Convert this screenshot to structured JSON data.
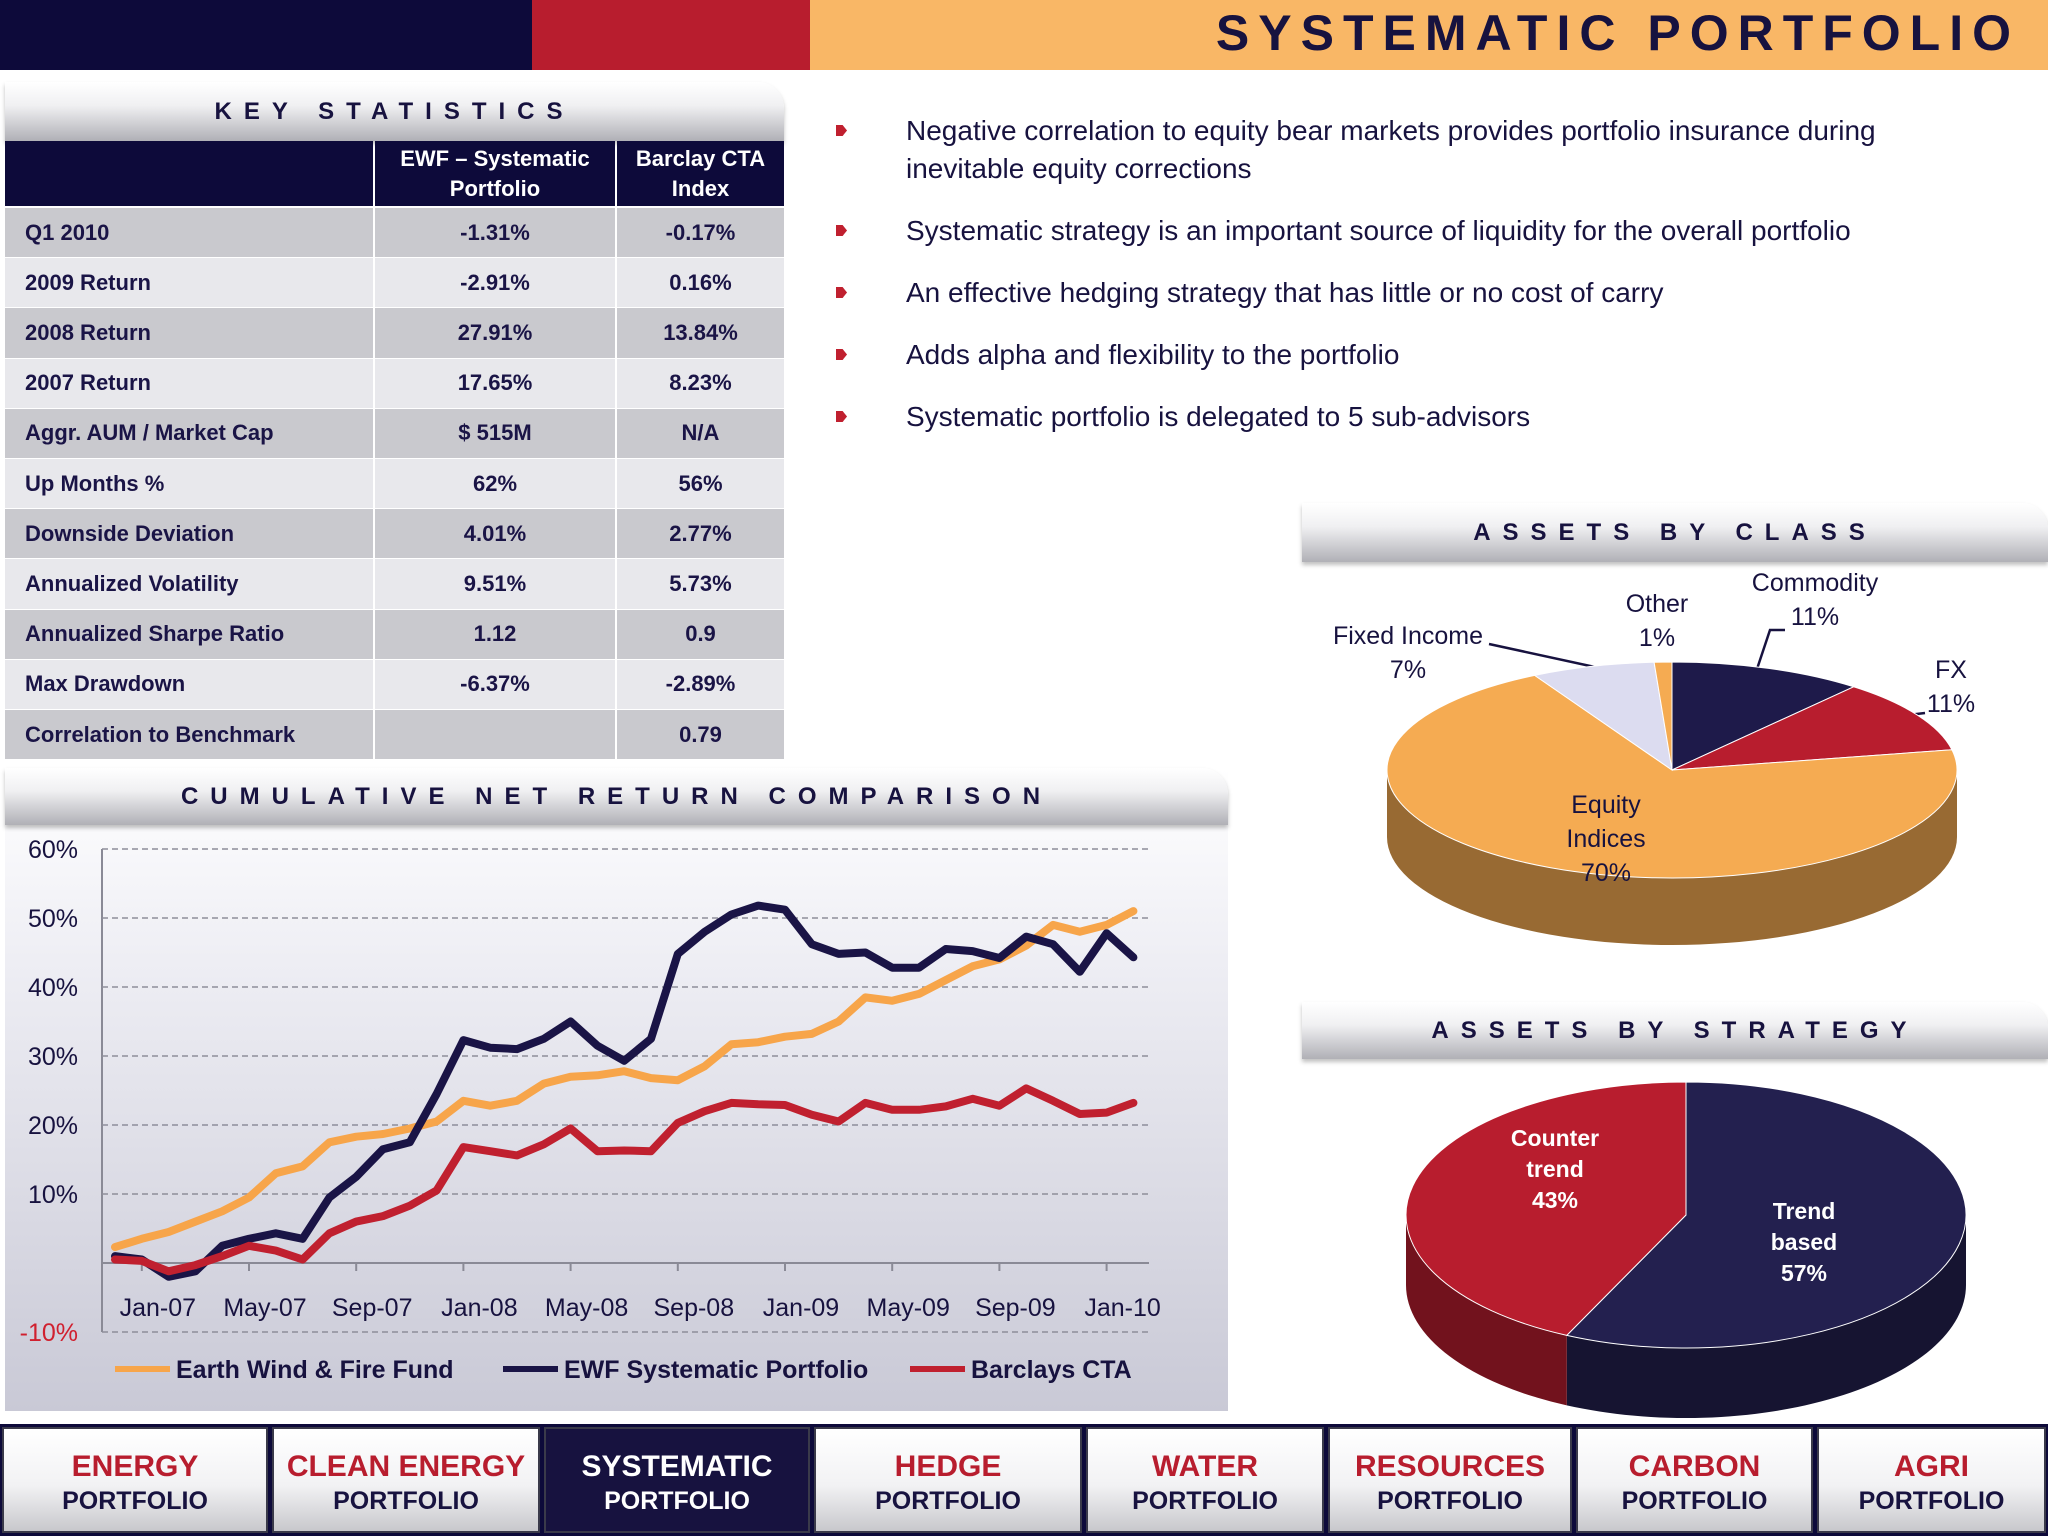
{
  "header": {
    "title": "SYSTEMATIC PORTFOLIO"
  },
  "key_statistics": {
    "title": "KEY STATISTICS",
    "columns": [
      "EWF – Systematic Portfolio",
      "Barclay CTA Index"
    ],
    "rows": [
      {
        "label": "Q1 2010",
        "values": [
          "-1.31%",
          "-0.17%"
        ]
      },
      {
        "label": "2009 Return",
        "values": [
          "-2.91%",
          "0.16%"
        ]
      },
      {
        "label": "2008 Return",
        "values": [
          "27.91%",
          "13.84%"
        ]
      },
      {
        "label": "2007 Return",
        "values": [
          "17.65%",
          "8.23%"
        ]
      },
      {
        "label": "Aggr. AUM / Market Cap",
        "values": [
          "$ 515M",
          "N/A"
        ]
      },
      {
        "label": "Up Months %",
        "values": [
          "62%",
          "56%"
        ]
      },
      {
        "label": "Downside Deviation",
        "values": [
          "4.01%",
          "2.77%"
        ]
      },
      {
        "label": "Annualized Volatility",
        "values": [
          "9.51%",
          "5.73%"
        ]
      },
      {
        "label": "Annualized  Sharpe Ratio",
        "values": [
          "1.12",
          "0.9"
        ]
      },
      {
        "label": "Max Drawdown",
        "values": [
          "-6.37%",
          "-2.89%"
        ]
      },
      {
        "label": "Correlation to Benchmark",
        "values": [
          null,
          "0.79"
        ]
      }
    ]
  },
  "bullets": [
    "Negative correlation to equity bear markets provides portfolio insurance during inevitable equity corrections",
    "Systematic strategy is an important source of liquidity for the overall portfolio",
    "An effective hedging strategy that has little or no cost of carry",
    "Adds alpha and flexibility to the portfolio",
    "Systematic portfolio is delegated to 5 sub-advisors"
  ],
  "chart_data": [
    {
      "type": "line",
      "title": "CUMULATIVE NET RETURN COMPARISON",
      "categories": [
        null,
        "Jan-07",
        null,
        null,
        null,
        "May-07",
        null,
        null,
        null,
        "Sep-07",
        null,
        null,
        null,
        "Jan-08",
        null,
        null,
        null,
        "May-08",
        null,
        null,
        null,
        "Sep-08",
        null,
        null,
        null,
        "Jan-09",
        null,
        null,
        null,
        "May-09",
        null,
        null,
        null,
        "Sep-09",
        null,
        null,
        null,
        "Jan-10",
        null
      ],
      "series": [
        {
          "name": "Earth Wind & Fire Fund",
          "color": "#f7a54a",
          "values": [
            2.3,
            3.5,
            4.5,
            6,
            7.5,
            9.5,
            13,
            14,
            17.5,
            18.3,
            18.7,
            19.5,
            20.5,
            23.5,
            22.8,
            23.5,
            26,
            27,
            27.2,
            27.8,
            26.8,
            26.5,
            28.5,
            31.7,
            32,
            32.8,
            33.2,
            35,
            38.5,
            38,
            39,
            41,
            43,
            44,
            46,
            49,
            48,
            49,
            51
          ]
        },
        {
          "name": "EWF Systematic Portfolio",
          "color": "#1a1446",
          "values": [
            1,
            0.5,
            -2,
            -1.2,
            2.5,
            3.5,
            4.3,
            3.5,
            9.5,
            12.5,
            16.5,
            17.5,
            24.5,
            32.3,
            31.2,
            31,
            32.5,
            35,
            31.5,
            29.3,
            32.5,
            44.8,
            48,
            50.5,
            51.8,
            51.2,
            46.2,
            44.8,
            45,
            42.8,
            42.8,
            45.5,
            45.2,
            44.2,
            47.3,
            46.2,
            42.2,
            47.8,
            44.3
          ]
        },
        {
          "name": "Barclays CTA",
          "color": "#c0202f",
          "values": [
            0.5,
            0.3,
            -1.2,
            -0.3,
            1,
            2.5,
            1.8,
            0.5,
            4.3,
            6,
            6.8,
            8.3,
            10.5,
            16.8,
            16.2,
            15.6,
            17.2,
            19.5,
            16.2,
            16.3,
            16.2,
            20.3,
            22,
            23.2,
            23,
            22.9,
            21.5,
            20.5,
            23.2,
            22.2,
            22.2,
            22.7,
            23.8,
            22.8,
            25.3,
            23.5,
            21.6,
            21.8,
            23.2
          ]
        }
      ],
      "ylim": [
        -10,
        60
      ],
      "yticks": [
        {
          "value": 60,
          "label": "60%"
        },
        {
          "value": 50,
          "label": "50%"
        },
        {
          "value": 40,
          "label": "40%"
        },
        {
          "value": 30,
          "label": "30%"
        },
        {
          "value": 20,
          "label": "20%"
        },
        {
          "value": 10,
          "label": "10%"
        },
        {
          "value": -10,
          "label": "-10%"
        }
      ],
      "grid": true,
      "legend": "bottom"
    },
    {
      "type": "pie",
      "title": "ASSETS BY CLASS",
      "categories": [
        "Commodity",
        "FX",
        "Equity Indices",
        "Fixed Income",
        "Other"
      ],
      "values": [
        11,
        11,
        70,
        7,
        1
      ],
      "value_labels": [
        "11%",
        "11%",
        "70%",
        "7%",
        "1%"
      ],
      "colors": [
        "#1e1a4a",
        "#b81d2e",
        "#f5ab52",
        "#dcdcf0",
        "#f5ab52"
      ]
    },
    {
      "type": "pie",
      "title": "ASSETS BY STRATEGY",
      "categories": [
        "Trend based",
        "Counter trend"
      ],
      "values": [
        57,
        43
      ],
      "value_labels": [
        "57%",
        "43%"
      ],
      "colors": [
        "#23204f",
        "#b81d2e"
      ]
    }
  ],
  "nav": {
    "selected": 2,
    "items": [
      {
        "top": "ENERGY",
        "bottom": "PORTFOLIO"
      },
      {
        "top": "CLEAN ENERGY",
        "bottom": "PORTFOLIO"
      },
      {
        "top": "SYSTEMATIC",
        "bottom": "PORTFOLIO"
      },
      {
        "top": "HEDGE",
        "bottom": "PORTFOLIO"
      },
      {
        "top": "WATER",
        "bottom": "PORTFOLIO"
      },
      {
        "top": "RESOURCES",
        "bottom": "PORTFOLIO"
      },
      {
        "top": "CARBON",
        "bottom": "PORTFOLIO"
      },
      {
        "top": "AGRI",
        "bottom": "PORTFOLIO"
      }
    ]
  }
}
